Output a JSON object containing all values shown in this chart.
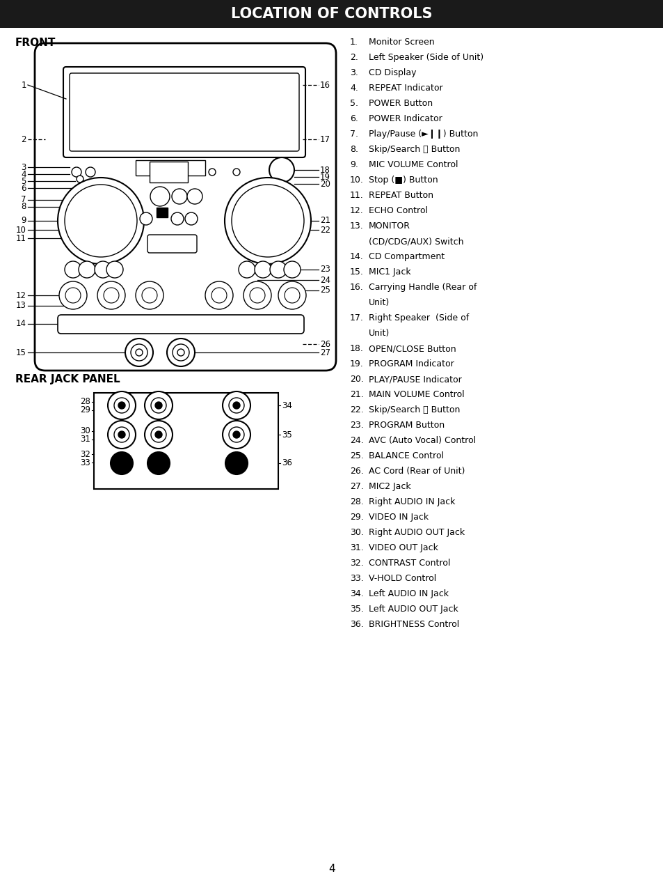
{
  "title": "LOCATION OF CONTROLS",
  "title_bg": "#1a1a1a",
  "title_color": "#ffffff",
  "front_label": "FRONT",
  "rear_label": "REAR JACK PANEL",
  "page_number": "4",
  "items_col1": [
    [
      "1.",
      "Monitor Screen"
    ],
    [
      "2.",
      "Left Speaker (Side of Unit)"
    ],
    [
      "3.",
      "CD Display"
    ],
    [
      "4.",
      "REPEAT Indicator"
    ],
    [
      "5.",
      "POWER Button"
    ],
    [
      "6.",
      "POWER Indicator"
    ],
    [
      "7.",
      "Play/Pause (►❙❙) Button"
    ],
    [
      "8.",
      "Skip/Search ⏮ Button"
    ],
    [
      "9.",
      "MIC VOLUME Control"
    ],
    [
      "10.",
      "Stop (■) Button"
    ],
    [
      "11.",
      "REPEAT Button"
    ],
    [
      "12.",
      "ECHO Control"
    ],
    [
      "13.",
      "MONITOR"
    ],
    [
      "",
      "(CD/CDG/AUX) Switch"
    ],
    [
      "14.",
      "CD Compartment"
    ],
    [
      "15.",
      "MIC1 Jack"
    ],
    [
      "16.",
      "Carrying Handle (Rear of"
    ],
    [
      "",
      "Unit)"
    ],
    [
      "17.",
      "Right Speaker  (Side of"
    ],
    [
      "",
      "Unit)"
    ],
    [
      "18.",
      "OPEN/CLOSE Button"
    ],
    [
      "19.",
      "PROGRAM Indicator"
    ],
    [
      "20.",
      "PLAY/PAUSE Indicator"
    ],
    [
      "21.",
      "MAIN VOLUME Control"
    ],
    [
      "22.",
      "Skip/Search ⏩ Button"
    ],
    [
      "23.",
      "PROGRAM Button"
    ],
    [
      "24.",
      "AVC (Auto Vocal) Control"
    ],
    [
      "25.",
      "BALANCE Control"
    ],
    [
      "26.",
      "AC Cord (Rear of Unit)"
    ],
    [
      "27.",
      "MIC2 Jack"
    ],
    [
      "28.",
      "Right AUDIO IN Jack"
    ],
    [
      "29.",
      "VIDEO IN Jack"
    ],
    [
      "30.",
      "Right AUDIO OUT Jack"
    ],
    [
      "31.",
      "VIDEO OUT Jack"
    ],
    [
      "32.",
      "CONTRAST Control"
    ],
    [
      "33.",
      "V-HOLD Control"
    ],
    [
      "34.",
      "Left AUDIO IN Jack"
    ],
    [
      "35.",
      "Left AUDIO OUT Jack"
    ],
    [
      "36.",
      "BRIGHTNESS Control"
    ]
  ]
}
